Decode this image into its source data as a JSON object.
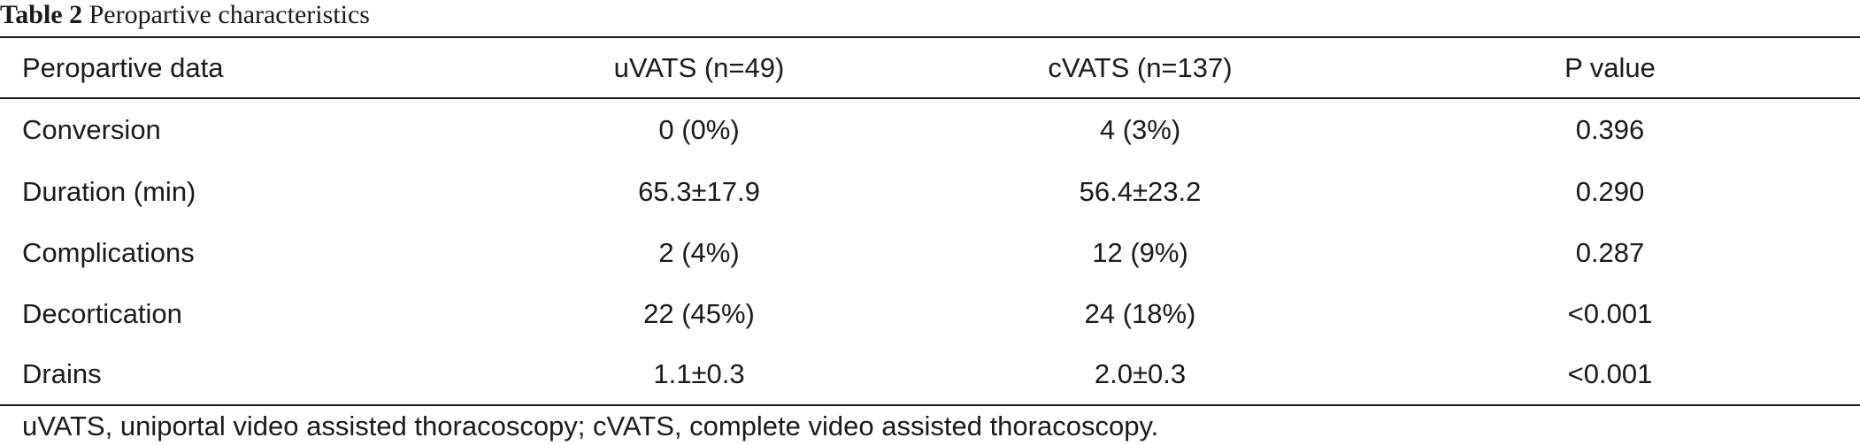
{
  "caption": {
    "label": "Table 2",
    "title": "Peropartive characteristics"
  },
  "table": {
    "headers": [
      "Peropartive data",
      "uVATS (n=49)",
      "cVATS (n=137)",
      "P value"
    ],
    "rows": [
      [
        "Conversion",
        "0 (0%)",
        "4 (3%)",
        "0.396"
      ],
      [
        "Duration (min)",
        "65.3±17.9",
        "56.4±23.2",
        "0.290"
      ],
      [
        "Complications",
        "2 (4%)",
        "12 (9%)",
        "0.287"
      ],
      [
        "Decortication",
        "22 (45%)",
        "24 (18%)",
        "<0.001"
      ],
      [
        "Drains",
        "1.1±0.3",
        "2.0±0.3",
        "<0.001"
      ]
    ]
  },
  "footnote": "uVATS, uniportal video assisted thoracoscopy; cVATS, complete video assisted thoracoscopy."
}
